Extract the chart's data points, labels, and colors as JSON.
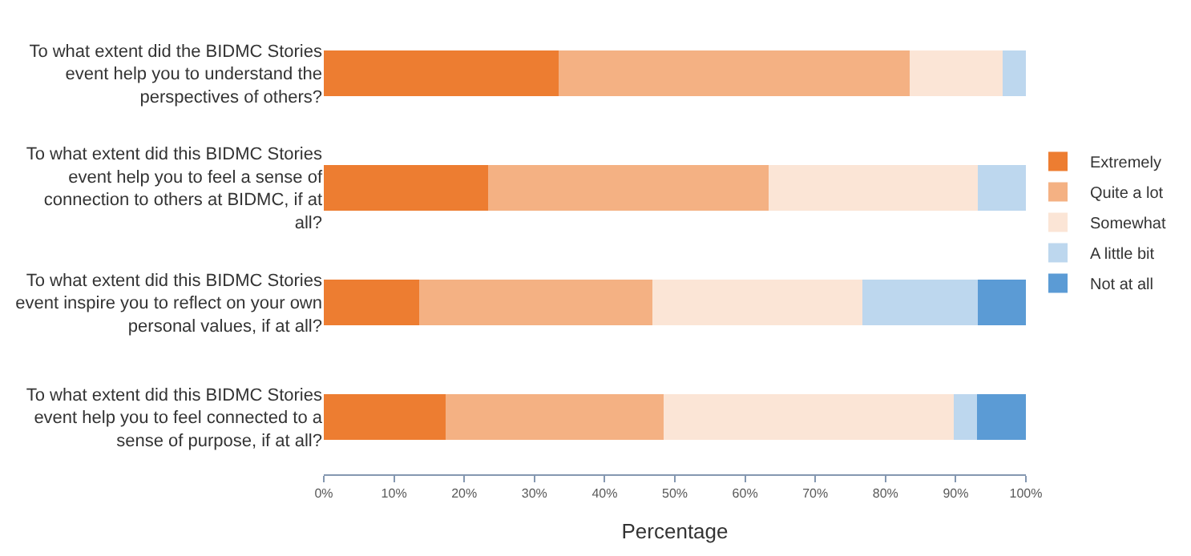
{
  "chart_data": {
    "type": "bar",
    "orientation": "horizontal",
    "stacked": true,
    "xlabel": "Percentage",
    "categories": [
      "To what extent did the BIDMC Stories event help you to understand the perspectives of others?",
      "To what extent did this BIDMC Stories event help you to feel a sense of connection to others at BIDMC, if at all?",
      "To what extent did this BIDMC Stories event inspire you to reflect on your own personal values, if at all?",
      "To what extent did this BIDMC Stories event help you to feel connected to a sense of purpose, if at all?"
    ],
    "series": [
      {
        "name": "Extremely",
        "color": "#ed7d31",
        "values": [
          33.5,
          23.4,
          13.6,
          17.3
        ]
      },
      {
        "name": "Quite a lot",
        "color": "#f4b183",
        "values": [
          49.9,
          40.0,
          33.2,
          31.1
        ]
      },
      {
        "name": "Somewhat",
        "color": "#fbe5d6",
        "values": [
          13.3,
          29.8,
          29.9,
          41.3
        ]
      },
      {
        "name": "A little bit",
        "color": "#bdd7ee",
        "values": [
          3.3,
          6.8,
          16.5,
          3.3
        ]
      },
      {
        "name": "Not at all",
        "color": "#5b9bd5",
        "values": [
          null,
          null,
          6.8,
          7.0
        ]
      }
    ],
    "xlim": [
      0,
      100
    ],
    "xticks": [
      {
        "value": 0,
        "label": "0%"
      },
      {
        "value": 10,
        "label": "10%"
      },
      {
        "value": 20,
        "label": "20%"
      },
      {
        "value": 30,
        "label": "30%"
      },
      {
        "value": 40,
        "label": "40%"
      },
      {
        "value": 50,
        "label": "50%"
      },
      {
        "value": 60,
        "label": "60%"
      },
      {
        "value": 70,
        "label": "70%"
      },
      {
        "value": 80,
        "label": "80%"
      },
      {
        "value": 90,
        "label": "90%"
      },
      {
        "value": 100,
        "label": "100%"
      }
    ],
    "legend": "right"
  }
}
